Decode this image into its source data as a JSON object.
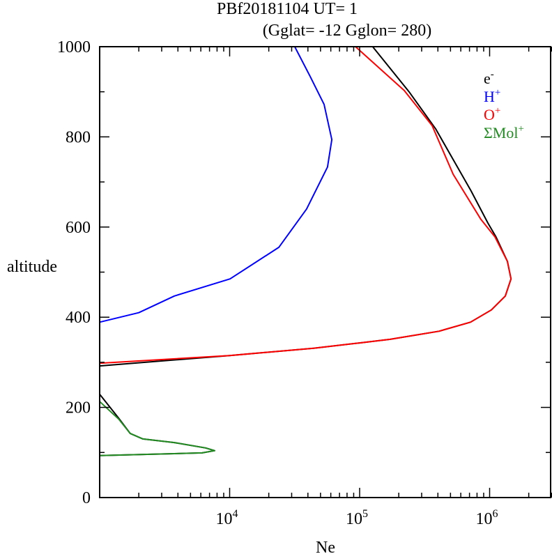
{
  "chart_data": {
    "type": "line",
    "title": "PBf20181104   UT=  1",
    "subtitle": "(Gglat= -12   Gglon=  280)",
    "xlabel": "Ne",
    "ylabel": "altitude",
    "xscale": "log",
    "xlim": [
      1000,
      3000000
    ],
    "ylim": [
      0,
      1000
    ],
    "x_ticks": [
      {
        "value": 10000,
        "base": "10",
        "exp": "4"
      },
      {
        "value": 100000,
        "base": "10",
        "exp": "5"
      },
      {
        "value": 1000000,
        "base": "10",
        "exp": "6"
      }
    ],
    "y_ticks": [
      "0",
      "200",
      "400",
      "600",
      "800",
      "1000"
    ],
    "legend_placement": "top-right",
    "series": [
      {
        "name": "e",
        "sup": "-",
        "color": "#000000",
        "segments": [
          [
            [
              1000,
              292
            ],
            [
              10000,
              315
            ],
            [
              44200,
              331
            ],
            [
              100000,
              343
            ],
            [
              172000,
              351
            ],
            [
              408000,
              369
            ],
            [
              713000,
              389
            ],
            [
              1030000,
              416
            ],
            [
              1320000,
              447
            ],
            [
              1460000,
              485
            ],
            [
              1370000,
              524
            ],
            [
              1120000,
              578
            ],
            [
              970000,
              609
            ],
            [
              720000,
              680
            ],
            [
              384000,
              818
            ],
            [
              240000,
              900
            ],
            [
              126000,
              1000
            ]
          ],
          [
            [
              1000,
              229
            ],
            [
              1400,
              176
            ],
            [
              1720,
              142
            ],
            [
              2150,
              130
            ],
            [
              3750,
              122
            ],
            [
              6530,
              110
            ],
            [
              7670,
              104
            ],
            [
              6140,
              99
            ],
            [
              1000,
              93
            ]
          ]
        ]
      },
      {
        "name": "H",
        "sup": "+",
        "color": "#0000ff",
        "segments": [
          [
            [
              1000,
              389
            ],
            [
              2000,
              410
            ],
            [
              3750,
              447
            ],
            [
              10070,
              485
            ],
            [
              23900,
              555
            ],
            [
              39100,
              640
            ],
            [
              56600,
              733
            ],
            [
              61100,
              794
            ],
            [
              53300,
              872
            ],
            [
              41600,
              934
            ],
            [
              31700,
              1000
            ]
          ]
        ]
      },
      {
        "name": "O",
        "sup": "+",
        "color": "#ff0000",
        "segments": [
          [
            [
              1000,
              298
            ],
            [
              10000,
              315
            ],
            [
              44200,
              331
            ],
            [
              100000,
              343
            ],
            [
              172000,
              351
            ],
            [
              408000,
              369
            ],
            [
              713000,
              389
            ],
            [
              1030000,
              416
            ],
            [
              1320000,
              447
            ],
            [
              1460000,
              485
            ],
            [
              1370000,
              524
            ],
            [
              1100000,
              578
            ],
            [
              857000,
              617
            ],
            [
              524000,
              717
            ],
            [
              361000,
              825
            ],
            [
              220000,
              903
            ],
            [
              93000,
              1000
            ]
          ]
        ]
      },
      {
        "name": "ΣMol",
        "sup": "+",
        "color": "#228b22",
        "segments": [
          [
            [
              1000,
              213
            ],
            [
              1400,
              174
            ],
            [
              1720,
              142
            ],
            [
              2150,
              130
            ],
            [
              3750,
              122
            ],
            [
              6530,
              110
            ],
            [
              7670,
              104
            ],
            [
              6140,
              99
            ],
            [
              1000,
              93
            ]
          ]
        ]
      }
    ]
  }
}
